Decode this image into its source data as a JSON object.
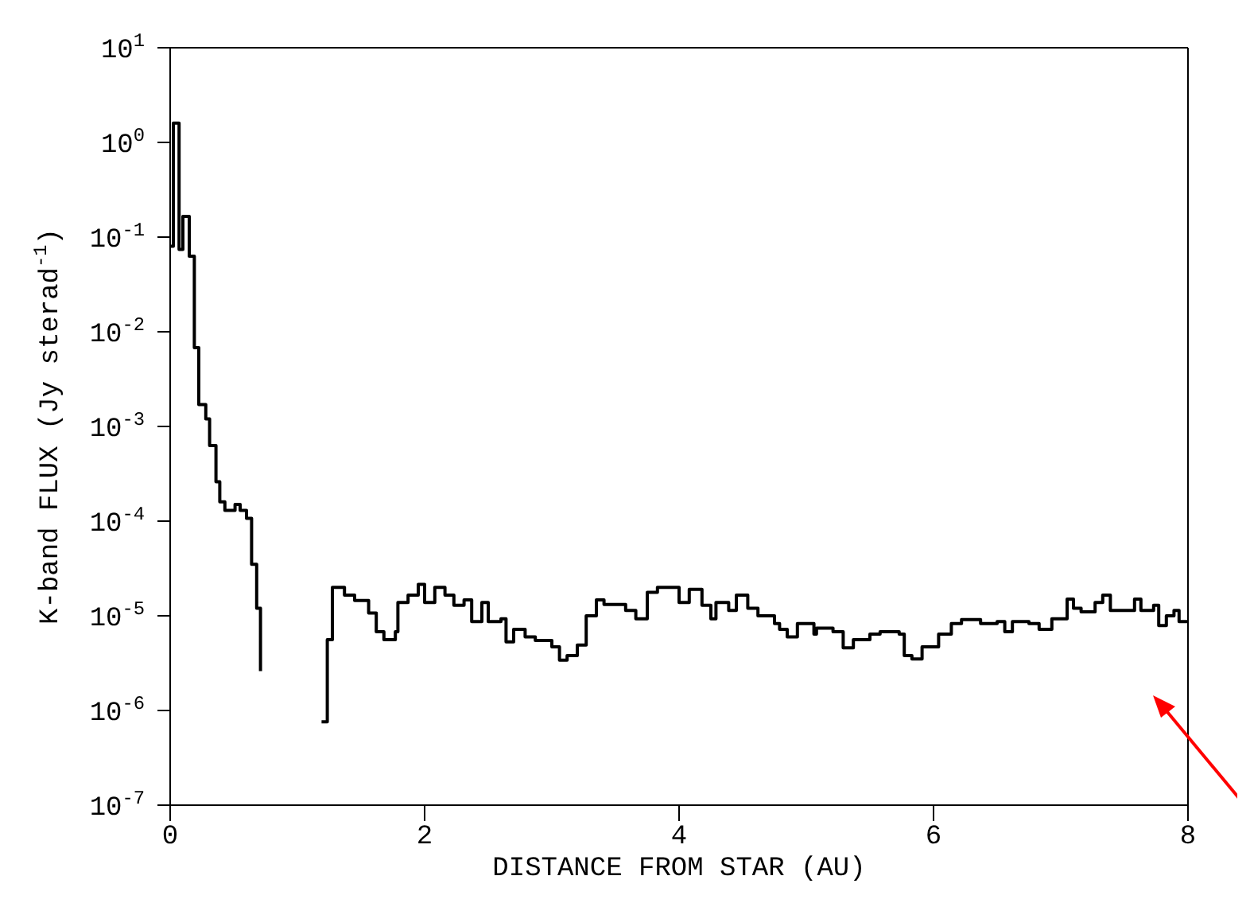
{
  "chart_data": {
    "type": "step",
    "xlabel": "DISTANCE FROM STAR (AU)",
    "ylabel": "K-band FLUX (Jy sterad$^{-1}$)",
    "xlim": [
      0,
      8
    ],
    "xticks": [
      0,
      2,
      4,
      6,
      8
    ],
    "log": "y",
    "ylim": [
      1e-07,
      10
    ],
    "yticks": [
      {
        "value": 1e-07,
        "label": "10$^{-7}$"
      },
      {
        "value": 1e-06,
        "label": "10$^{-6}$"
      },
      {
        "value": 1e-05,
        "label": "10$^{-5}$"
      },
      {
        "value": 0.0001,
        "label": "10$^{-4}$"
      },
      {
        "value": 0.001,
        "label": "10$^{-3}$"
      },
      {
        "value": 0.01,
        "label": "10$^{-2}$"
      },
      {
        "value": 0.1,
        "label": "10$^{-1}$"
      },
      {
        "value": 1,
        "label": "10$^{0}$"
      },
      {
        "value": 10,
        "label": "10$^{1}$"
      }
    ],
    "grid": false,
    "marker": "none",
    "line_style": "solid",
    "series": [
      {
        "color": "#000000",
        "x": [
          0,
          0.025,
          0.07,
          0.1,
          0.15,
          0.19,
          0.225,
          0.28,
          0.31,
          0.36,
          0.39,
          0.43,
          0.51,
          0.55,
          0.6,
          0.64,
          0.68,
          0.71,
          0.755,
          1.19,
          1.235,
          1.275,
          1.33,
          1.37,
          1.45,
          1.56,
          1.62,
          1.68,
          1.77,
          1.79,
          1.87,
          1.95,
          2.0,
          2.08,
          2.16,
          2.23,
          2.31,
          2.37,
          2.45,
          2.5,
          2.6,
          2.64,
          2.7,
          2.79,
          2.87,
          3.0,
          3.06,
          3.12,
          3.2,
          3.27,
          3.35,
          3.41,
          3.58,
          3.66,
          3.75,
          3.83,
          4.0,
          4.08,
          4.18,
          4.25,
          4.29,
          4.39,
          4.45,
          4.54,
          4.62,
          4.75,
          4.79,
          4.85,
          4.93,
          5.06,
          5.08,
          5.21,
          5.29,
          5.37,
          5.5,
          5.58,
          5.73,
          5.77,
          5.83,
          5.91,
          6.04,
          6.14,
          6.22,
          6.37,
          6.5,
          6.56,
          6.62,
          6.75,
          6.83,
          6.93,
          7.05,
          7.1,
          7.16,
          7.27,
          7.33,
          7.39,
          7.5,
          7.58,
          7.63,
          7.73,
          7.77,
          7.83,
          7.89,
          7.93,
          8.0
        ],
        "values": [
          0.08,
          1.6,
          0.074,
          0.165,
          0.063,
          0.0068,
          0.0017,
          0.0012,
          0.00063,
          0.00026,
          0.00016,
          0.00013,
          0.00015,
          0.00013,
          0.000107,
          3.5e-05,
          1.2e-05,
          2.6e-06,
          null,
          7.6e-07,
          5.6e-06,
          2e-05,
          2e-05,
          1.65e-05,
          1.45e-05,
          1.07e-05,
          6.8e-06,
          5.6e-06,
          6.8e-06,
          1.38e-05,
          1.65e-05,
          2.15e-05,
          1.38e-05,
          2e-05,
          1.65e-05,
          1.29e-05,
          1.47e-05,
          8.7e-06,
          1.38e-05,
          8.7e-06,
          9.3e-06,
          5.3e-06,
          7.2e-06,
          6e-06,
          5.5e-06,
          4.7e-06,
          3.4e-06,
          3.8e-06,
          4.9e-06,
          1e-05,
          1.47e-05,
          1.32e-05,
          1.14e-05,
          9.3e-06,
          1.77e-05,
          2e-05,
          1.38e-05,
          1.9e-05,
          1.29e-05,
          9.3e-06,
          1.38e-05,
          1.14e-05,
          1.65e-05,
          1.2e-05,
          1e-05,
          8.3e-06,
          7.2e-06,
          6e-06,
          8.3e-06,
          6.4e-06,
          7.4e-06,
          6.8e-06,
          4.6e-06,
          5.6e-06,
          6.4e-06,
          6.8e-06,
          6.4e-06,
          3.8e-06,
          3.5e-06,
          4.7e-06,
          6.4e-06,
          8.3e-06,
          9.1e-06,
          8.3e-06,
          8.7e-06,
          6.8e-06,
          8.7e-06,
          8.3e-06,
          7.2e-06,
          9.3e-06,
          1.5e-05,
          1.2e-05,
          1.1e-05,
          1.38e-05,
          1.65e-05,
          1.14e-05,
          1.14e-05,
          1.5e-05,
          1.14e-05,
          1.29e-05,
          7.9e-06,
          1e-05,
          1.14e-05,
          8.7e-06,
          8.7e-06
        ]
      }
    ]
  }
}
